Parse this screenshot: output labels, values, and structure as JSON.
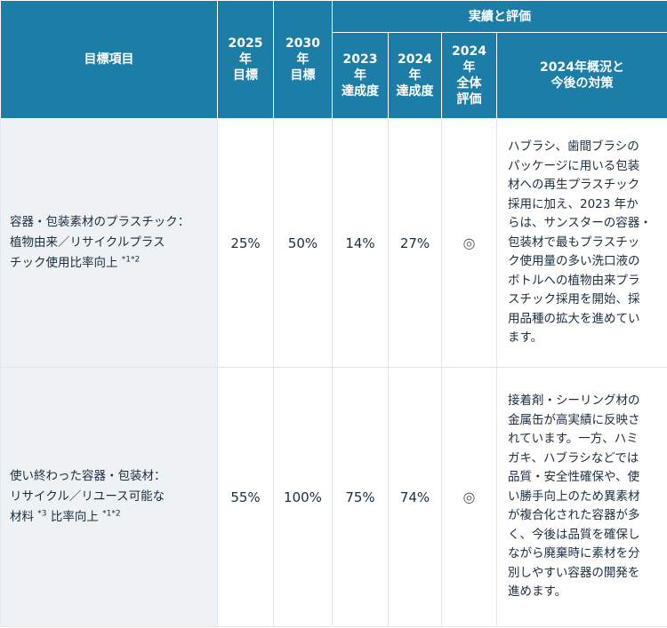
{
  "header": {
    "item": "目標項目",
    "target2025": [
      "2025",
      "年",
      "目標"
    ],
    "target2030": [
      "2030",
      "年",
      "目標"
    ],
    "results_group": "実績と評価",
    "ach2023": [
      "2023",
      "年",
      "達成度"
    ],
    "ach2024": [
      "2024",
      "年",
      "達成度"
    ],
    "eval2024": [
      "2024",
      "年",
      "全体",
      "評価"
    ],
    "outlook": [
      "2024年概況と",
      "今後の対策"
    ]
  },
  "rows": [
    {
      "item_lines": [
        "容器・包装素材のプラスチック：",
        "植物由来／リサイクルプラス",
        "チック使用比率向上"
      ],
      "item_note": "*1*2",
      "target2025": "25%",
      "target2030": "50%",
      "ach2023": "14%",
      "ach2024": "27%",
      "eval": "◎",
      "note_lines": [
        "ハブラシ、歯間ブラシの",
        "パッケージに用いる包装",
        "材への再生プラスチック",
        "採用に加え、2023 年か",
        "らは、サンスターの容器・",
        "包装材で最もプラスチッ",
        "ク使用量の多い洗口液の",
        "ボトルへの植物由来プラ",
        "スチック採用を開始、採",
        "用品種の拡大を進めてい",
        "ます。"
      ]
    },
    {
      "item_lines": [
        "使い終わった容器・包装材：",
        "リサイクル／リユース可能な",
        "材料"
      ],
      "item_note_a": "*3",
      "item_tail": " 比率向上",
      "item_note": "*1*2",
      "target2025": "55%",
      "target2030": "100%",
      "ach2023": "75%",
      "ach2024": "74%",
      "eval": "◎",
      "note_lines": [
        "接着剤・シーリング材の",
        "金属缶が高実績に反映さ",
        "れています。一方、ハミ",
        "ガキ、ハブラシなどでは",
        "品質・安全性確保や、使",
        "い勝手向上のため異素材",
        "が複合化された容器が多",
        "く、今後は品質を確保し",
        "ながら廃棄時に素材を分",
        "別しやすい容器の開発を",
        "進めます。"
      ]
    }
  ]
}
